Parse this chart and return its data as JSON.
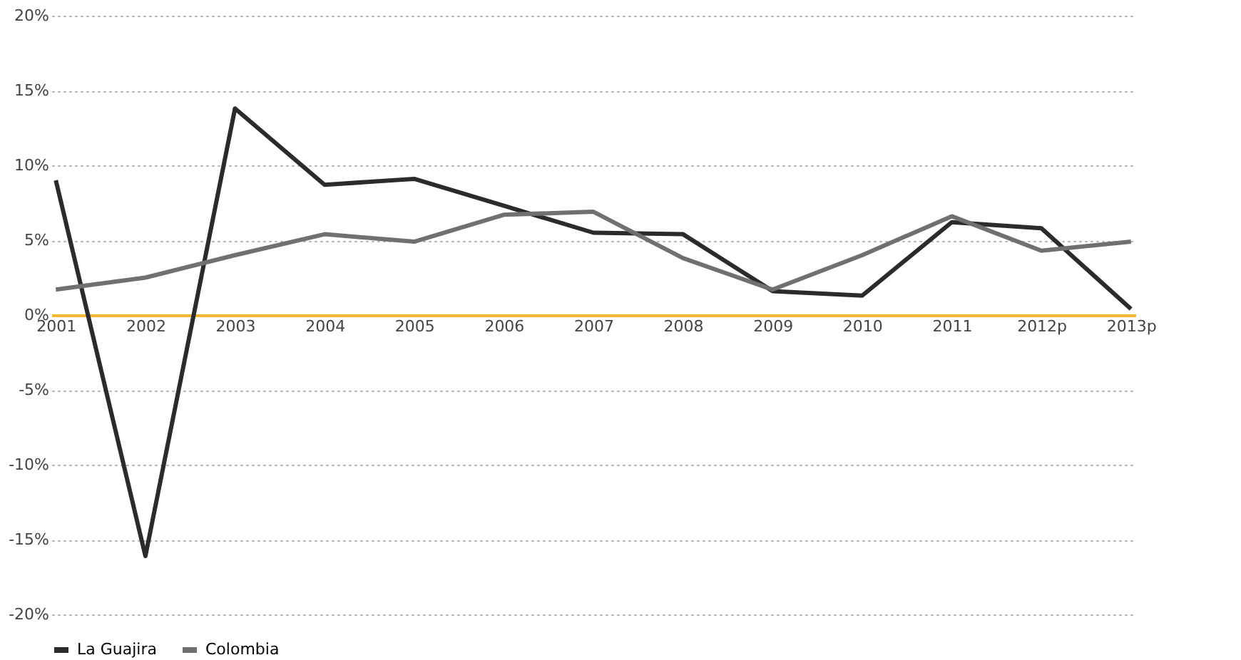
{
  "chart_data": {
    "type": "line",
    "categories": [
      "2001",
      "2002",
      "2003",
      "2004",
      "2005",
      "2006",
      "2007",
      "2008",
      "2009",
      "2010",
      "2011",
      "2012p",
      "2013p"
    ],
    "series": [
      {
        "name": "La Guajira",
        "color": "#2b2b2b",
        "values": [
          9.0,
          -16.1,
          13.8,
          8.7,
          9.1,
          7.3,
          5.5,
          5.4,
          1.6,
          1.3,
          6.2,
          5.8,
          0.4
        ]
      },
      {
        "name": "Colombia",
        "color": "#707070",
        "values": [
          1.7,
          2.5,
          4.0,
          5.4,
          4.9,
          6.7,
          6.9,
          3.8,
          1.7,
          4.0,
          6.6,
          4.3,
          4.9
        ]
      }
    ],
    "ylim": [
      -20,
      20
    ],
    "yticks": [
      {
        "value": -20,
        "label": "-20%"
      },
      {
        "value": -15,
        "label": "-15%"
      },
      {
        "value": -10,
        "label": "-10%"
      },
      {
        "value": -5,
        "label": "-5%"
      },
      {
        "value": 0,
        "label": "0%"
      },
      {
        "value": 5,
        "label": "5%"
      },
      {
        "value": 10,
        "label": "10%"
      },
      {
        "value": 15,
        "label": "15%"
      },
      {
        "value": 20,
        "label": "20%"
      }
    ],
    "grid": "y",
    "legend": "bottom",
    "marker": "none",
    "line_style": "solid"
  }
}
